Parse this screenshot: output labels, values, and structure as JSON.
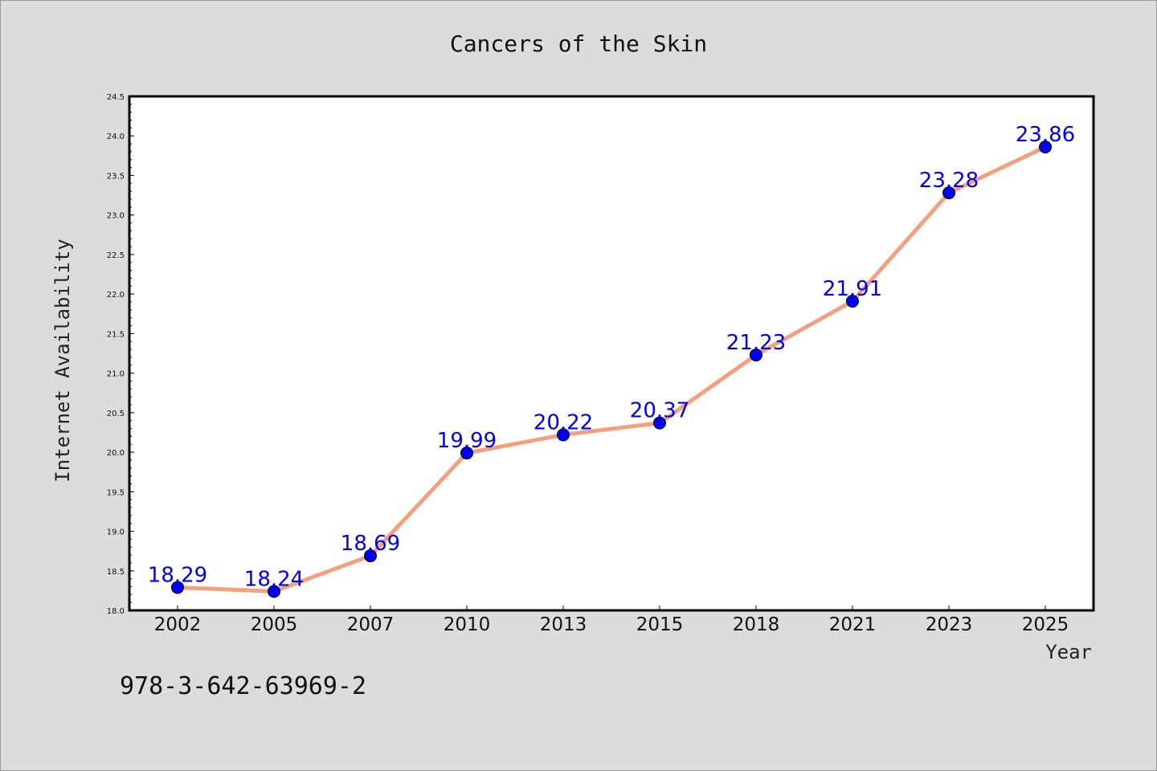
{
  "footnote": "978-3-642-63969-2",
  "chart_data": {
    "type": "line",
    "title": "Cancers of the Skin",
    "xlabel": "Year",
    "ylabel": "Internet Availability",
    "categories": [
      "2002",
      "2005",
      "2007",
      "2010",
      "2013",
      "2015",
      "2018",
      "2021",
      "2023",
      "2025"
    ],
    "series": [
      {
        "values": [
          18.29,
          18.24,
          18.69,
          19.99,
          20.22,
          20.37,
          21.23,
          21.91,
          23.28,
          23.86
        ],
        "line_color": "#f4a07e",
        "marker_color": "#0000ee"
      }
    ],
    "data_labels": [
      "18.29",
      "18.24",
      "18.69",
      "19.99",
      "20.22",
      "20.37",
      "21.23",
      "21.91",
      "23.28",
      "23.86"
    ],
    "ylim": [
      18.0,
      24.5
    ],
    "yticks": [
      "18.0",
      "18.5",
      "19.0",
      "19.5",
      "20.0",
      "20.5",
      "21.0",
      "21.5",
      "22.0",
      "22.5",
      "23.0",
      "23.5",
      "24.0",
      "24.5"
    ],
    "grid": false,
    "legend": "none",
    "background_color": "#dcdcdc",
    "plot_background_color": "#ffffff"
  }
}
